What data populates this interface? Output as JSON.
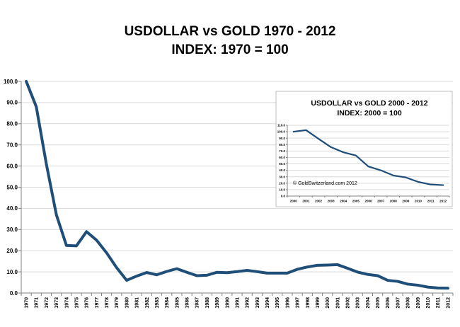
{
  "chart_data": [
    {
      "type": "line",
      "title_lines": [
        "USDOLLAR vs GOLD 1970 - 2012",
        "INDEX: 1970 = 100"
      ],
      "xlabel": "",
      "ylabel": "",
      "ylim": [
        0,
        100
      ],
      "yticks": [
        0,
        10,
        20,
        30,
        40,
        50,
        60,
        70,
        80,
        90,
        100
      ],
      "ytick_labels": [
        "0.0",
        "10.0",
        "20.0",
        "30.0",
        "40.0",
        "50.0",
        "60.0",
        "70.0",
        "80.0",
        "90.0",
        "100.0"
      ],
      "grid": true,
      "legend": "none",
      "line_color": "#1f4e79",
      "x": [
        "1970",
        "1971",
        "1972",
        "1973",
        "1974",
        "1975",
        "1976",
        "1977",
        "1978",
        "1979",
        "1980",
        "1981",
        "1982",
        "1983",
        "1984",
        "1985",
        "1986",
        "1987",
        "1988",
        "1989",
        "1990",
        "1991",
        "1992",
        "1993",
        "1994",
        "1995",
        "1996",
        "1997",
        "1998",
        "1999",
        "2000",
        "2001",
        "2002",
        "2003",
        "2004",
        "2005",
        "2006",
        "2007",
        "2008",
        "2009",
        "2010",
        "2011",
        "2012"
      ],
      "values": [
        100,
        88,
        61,
        37,
        22.5,
        22.3,
        29,
        25,
        19,
        12,
        6,
        8,
        9.7,
        8.6,
        10.2,
        11.5,
        9.8,
        8.2,
        8.4,
        9.8,
        9.6,
        10.1,
        10.7,
        10.1,
        9.4,
        9.4,
        9.4,
        11.2,
        12.3,
        13.1,
        13.2,
        13.4,
        11.7,
        9.9,
        8.8,
        8.2,
        6,
        5.5,
        4.2,
        3.7,
        2.8,
        2.4,
        2.3
      ]
    },
    {
      "type": "line",
      "title_lines": [
        "USDOLLAR vs GOLD 2000 - 2012",
        "INDEX: 2000 = 100"
      ],
      "ylim": [
        0,
        110
      ],
      "yticks": [
        0,
        10,
        20,
        30,
        40,
        50,
        60,
        70,
        80,
        90,
        100,
        110
      ],
      "ytick_labels": [
        "0.0",
        "10.0",
        "20.0",
        "30.0",
        "40.0",
        "50.0",
        "60.0",
        "70.0",
        "80.0",
        "90.0",
        "100.0",
        "110.0"
      ],
      "grid": true,
      "legend": "none",
      "line_color": "#1f4e79",
      "annotation": "© GoldSwitzerland.com 2012",
      "x": [
        "2000",
        "2001",
        "2002",
        "2003",
        "2004",
        "2005",
        "2006",
        "2007",
        "2008",
        "2009",
        "2010",
        "2011",
        "2012"
      ],
      "values": [
        100,
        102.5,
        89,
        76,
        68,
        63,
        46,
        40,
        32,
        29,
        22,
        18,
        17
      ]
    }
  ]
}
